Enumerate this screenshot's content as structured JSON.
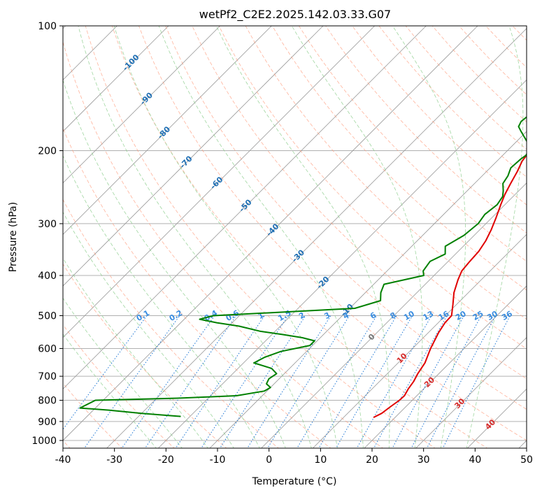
{
  "chart_data": {
    "type": "line",
    "title": "wetPf2_C2E2.2025.142.03.33.G07",
    "xlabel": "Temperature (°C)",
    "ylabel": "Pressure (hPa)",
    "xlim": [
      -40,
      50
    ],
    "ylim": [
      1050,
      100
    ],
    "y_scale": "log",
    "x_ticks": [
      -40,
      -30,
      -20,
      -10,
      0,
      10,
      20,
      30,
      40,
      50
    ],
    "y_ticks": [
      100,
      200,
      300,
      400,
      500,
      600,
      700,
      800,
      900,
      1000
    ],
    "grid": true,
    "skew": 45,
    "colors": {
      "temperature": "#e00000",
      "dewpoint": "#008000",
      "dry_adiabats": "#ff9a7a",
      "moist_adiabats": "#8fcf8f",
      "mixing_ratio": "#1f77d4",
      "isotherms": "#888888"
    },
    "series": [
      {
        "color": "#e00000",
        "pressure": [
          880,
          860,
          830,
          800,
          780,
          750,
          720,
          690,
          650,
          600,
          550,
          520,
          500,
          470,
          440,
          410,
          390,
          370,
          350,
          330,
          310,
          290,
          270,
          255,
          240,
          225,
          212,
          205,
          200,
          195,
          190,
          180,
          170,
          160,
          150,
          140,
          130,
          123,
          118,
          113,
          108,
          104,
          100
        ],
        "temperature": [
          15.8,
          16.6,
          17.0,
          17.5,
          17.6,
          17.0,
          16.6,
          15.9,
          15.2,
          13.5,
          12.0,
          11.3,
          11.2,
          9.3,
          7.2,
          5.5,
          4.5,
          4.2,
          4.0,
          3.3,
          2.2,
          0.8,
          -0.8,
          -2.0,
          -3.0,
          -4.0,
          -5.1,
          -5.4,
          -5.4,
          -5.0,
          -4.0,
          -2.3,
          0.3,
          2.6,
          4.1,
          5.4,
          7.0,
          8.7,
          10.1,
          10.4,
          10.7,
          11.3,
          12.5
        ]
      },
      {
        "color": "#008000",
        "pressure": [
          875,
          860,
          845,
          835,
          800,
          790,
          780,
          760,
          745,
          730,
          710,
          690,
          670,
          650,
          630,
          610,
          590,
          575,
          565,
          555,
          545,
          530,
          520,
          510,
          500,
          480,
          460,
          440,
          420,
          400,
          390,
          370,
          355,
          340,
          320,
          300,
          285,
          270,
          258,
          250,
          240,
          230,
          220,
          210,
          205,
          200,
          190,
          180,
          175,
          170,
          160,
          150,
          140,
          130,
          120,
          110,
          105,
          100
        ],
        "dewpoint": [
          -21.8,
          -30.0,
          -37.0,
          -43.0,
          -41.5,
          -25.0,
          -15.0,
          -10.5,
          -10.0,
          -11.5,
          -12.0,
          -11.5,
          -13.5,
          -18.0,
          -17.0,
          -15.0,
          -10.5,
          -10.5,
          -13.5,
          -18.0,
          -23.0,
          -28.0,
          -33.0,
          -37.0,
          -35.0,
          -9.0,
          -5.5,
          -7.0,
          -8.0,
          -2.0,
          -3.0,
          -3.5,
          -2.0,
          -3.5,
          -2.0,
          -1.5,
          -2.0,
          -1.5,
          -2.0,
          -3.0,
          -4.5,
          -5.0,
          -6.0,
          -5.8,
          -5.5,
          -5.9,
          -8.0,
          -11.0,
          -12.5,
          -13.0,
          -12.5,
          -11.5,
          -9.5,
          -7.5,
          -5.0,
          -3.5,
          -2.0,
          -1.0
        ]
      }
    ],
    "annotations": {
      "isotherm_labels": [
        "-100",
        "-90",
        "-80",
        "-70",
        "-60",
        "-50",
        "-40",
        "-30",
        "-20",
        "-10",
        "0",
        "10",
        "20",
        "30",
        "40"
      ],
      "mixing_ratio_labels": [
        "0.1",
        "0.2",
        "0.4",
        "0.6",
        "1",
        "1.5",
        "2",
        "3",
        "4",
        "6",
        "8",
        "10",
        "13",
        "16",
        "20",
        "25",
        "30",
        "36"
      ]
    }
  }
}
